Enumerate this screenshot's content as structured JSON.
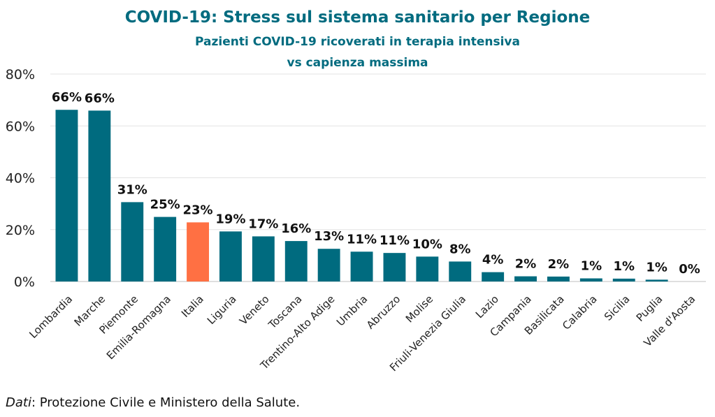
{
  "chart_data": {
    "type": "bar",
    "title": "COVID-19: Stress sul sistema sanitario per Regione",
    "subtitle_lines": [
      "Pazienti COVID-19 ricoverati in terapia intensiva",
      "vs capienza massima"
    ],
    "xlabel": "",
    "ylabel": "",
    "ylim": [
      0,
      80
    ],
    "yticks": [
      "0%",
      "20%",
      "40%",
      "60%",
      "80%"
    ],
    "ytick_values": [
      0,
      20,
      40,
      60,
      80
    ],
    "grid": "horizontal",
    "categories": [
      "Lombardia",
      "Marche",
      "Piemonte",
      "Emilia-Romagna",
      "Italia",
      "Liguria",
      "Veneto",
      "Toscana",
      "Trentino-Alto Adige",
      "Umbria",
      "Abruzzo",
      "Molise",
      "Friuli-Venezia Giulia",
      "Lazio",
      "Campania",
      "Basilicata",
      "Calabria",
      "Sicilia",
      "Puglia",
      "Valle d'Aosta"
    ],
    "values": [
      66.2,
      65.9,
      30.6,
      24.9,
      22.8,
      19.3,
      17.4,
      15.6,
      12.6,
      11.5,
      11.0,
      9.6,
      7.7,
      3.6,
      2.0,
      1.9,
      1.2,
      1.1,
      0.7,
      0.0
    ],
    "data_labels": [
      "66%",
      "66%",
      "31%",
      "25%",
      "23%",
      "19%",
      "17%",
      "16%",
      "13%",
      "11%",
      "11%",
      "10%",
      "8%",
      "4%",
      "2%",
      "2%",
      "1%",
      "1%",
      "1%",
      "0%"
    ],
    "bar_color": "#006b7f",
    "highlight_category": "Italia",
    "highlight_color": "#ff7043"
  },
  "source": {
    "label": "Dati",
    "text": ": Protezione Civile e Ministero della Salute."
  }
}
